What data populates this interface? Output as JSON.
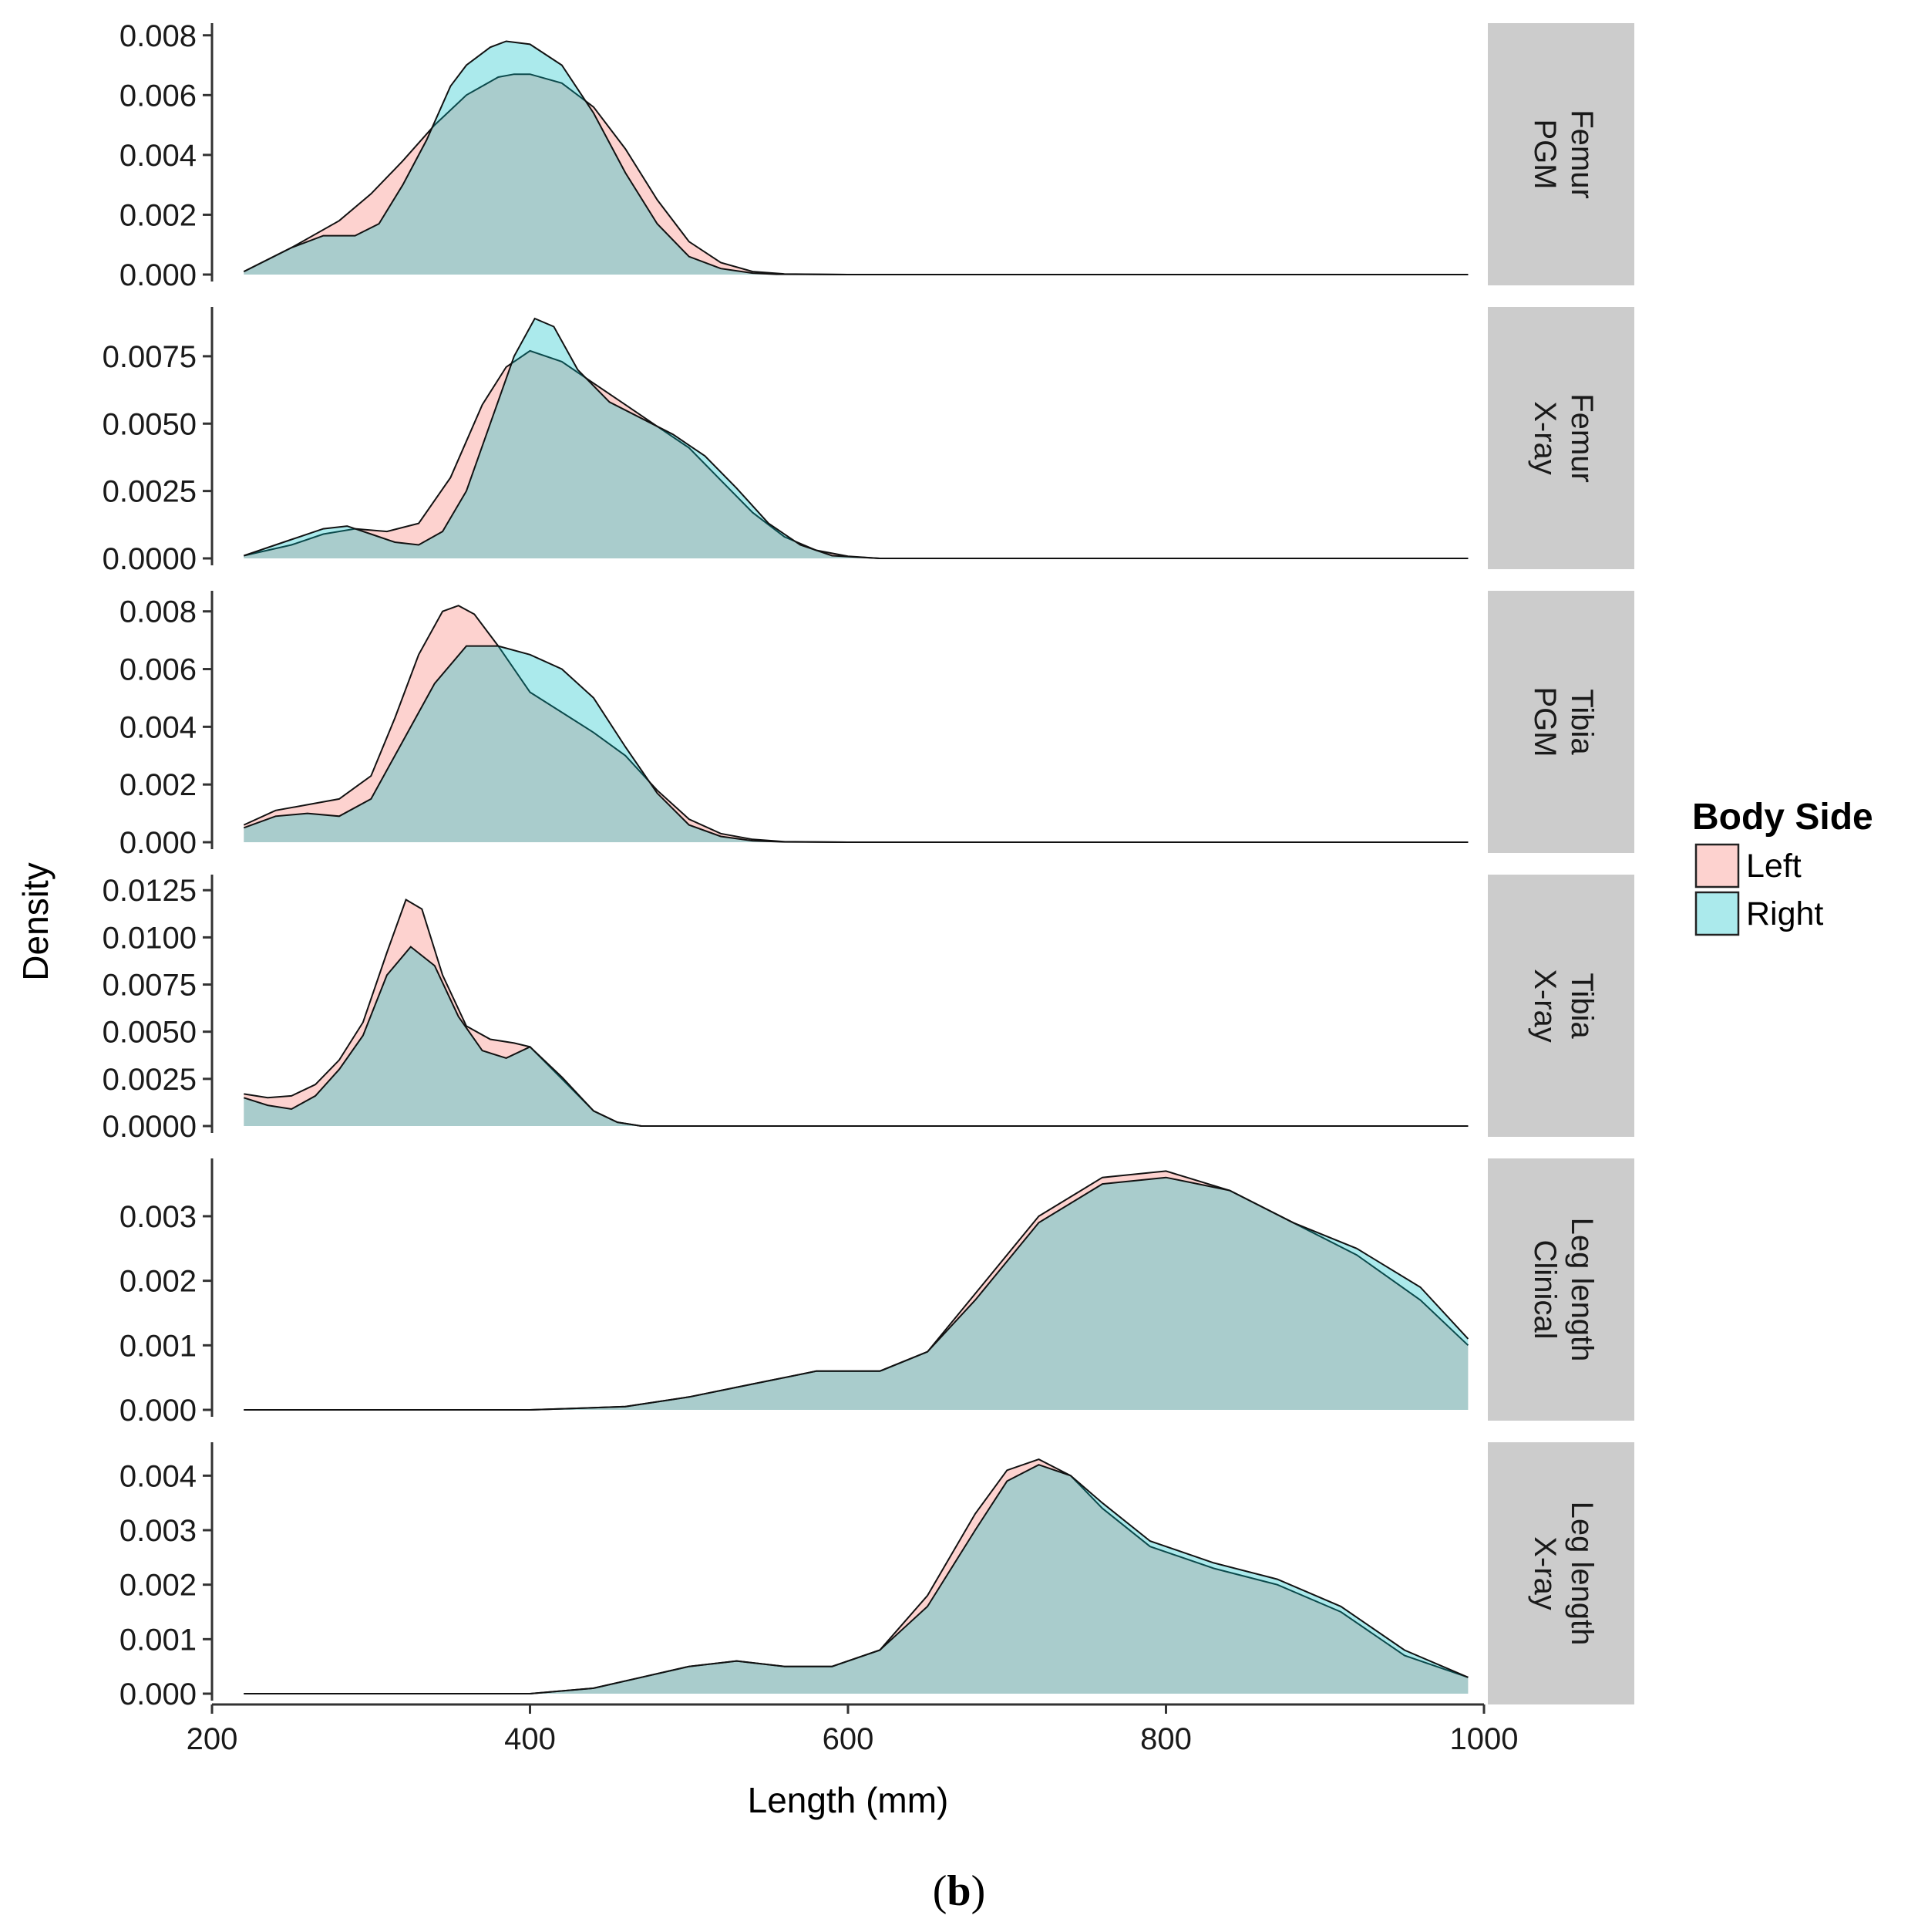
{
  "chart_data": {
    "type": "area",
    "subtype": "faceted density plot",
    "xlabel": "Length (mm)",
    "ylabel": "Density",
    "xlim": [
      200,
      1000
    ],
    "x_ticks": [
      200,
      400,
      600,
      800,
      1000
    ],
    "x_tick_labels": [
      "200",
      "400",
      "600",
      "800",
      "1000"
    ],
    "caption": "(b)",
    "legend": {
      "title": "Body Side",
      "position": "right",
      "items": [
        {
          "label": "Left",
          "color": "#f8766d"
        },
        {
          "label": "Right",
          "color": "#00bfc4"
        }
      ]
    },
    "colors": {
      "left_fill": "#f8766d",
      "right_fill": "#00bfc4",
      "strip_bg": "#cccccc"
    },
    "panels": [
      {
        "strip": [
          "Femur",
          "PGM"
        ],
        "ylim": [
          0,
          0.0082
        ],
        "y_ticks": [
          0,
          0.002,
          0.004,
          0.006,
          0.008
        ],
        "y_tick_labels": [
          "0.000",
          "0.002",
          "0.004",
          "0.006",
          "0.008"
        ],
        "series": [
          {
            "name": "Left",
            "x": [
              220,
              250,
              280,
              300,
              320,
              340,
              360,
              380,
              390,
              400,
              420,
              440,
              460,
              480,
              500,
              520,
              540,
              560,
              600,
              990
            ],
            "y": [
              0.0001,
              0.0009,
              0.0018,
              0.0027,
              0.0038,
              0.005,
              0.006,
              0.0066,
              0.0067,
              0.0067,
              0.0064,
              0.0056,
              0.0042,
              0.0025,
              0.0011,
              0.0004,
              0.0001,
              2e-05,
              0,
              0
            ]
          },
          {
            "name": "Right",
            "x": [
              220,
              250,
              270,
              290,
              305,
              320,
              335,
              350,
              360,
              375,
              385,
              400,
              420,
              440,
              460,
              480,
              500,
              520,
              540,
              555,
              600,
              990
            ],
            "y": [
              0.0001,
              0.0009,
              0.0013,
              0.0013,
              0.0017,
              0.003,
              0.0045,
              0.0063,
              0.007,
              0.0076,
              0.0078,
              0.0077,
              0.007,
              0.0054,
              0.0034,
              0.0017,
              0.0006,
              0.0002,
              5e-05,
              1e-05,
              0,
              0
            ]
          }
        ]
      },
      {
        "strip": [
          "Femur",
          "X-ray"
        ],
        "ylim": [
          0,
          0.0091
        ],
        "y_ticks": [
          0,
          0.0025,
          0.005,
          0.0075
        ],
        "y_tick_labels": [
          "0.0000",
          "0.0025",
          "0.0050",
          "0.0075"
        ],
        "series": [
          {
            "name": "Left",
            "x": [
              220,
              250,
              270,
              290,
              310,
              330,
              350,
              370,
              385,
              400,
              420,
              440,
              460,
              480,
              500,
              520,
              540,
              560,
              580,
              600,
              620,
              990
            ],
            "y": [
              0.0001,
              0.0005,
              0.0009,
              0.0011,
              0.001,
              0.0013,
              0.003,
              0.0057,
              0.0071,
              0.0077,
              0.0073,
              0.0065,
              0.0057,
              0.0049,
              0.0041,
              0.0029,
              0.0017,
              0.0008,
              0.0003,
              8e-05,
              0,
              0
            ]
          },
          {
            "name": "Right",
            "x": [
              220,
              250,
              270,
              285,
              300,
              315,
              330,
              345,
              360,
              375,
              390,
              403,
              415,
              430,
              450,
              470,
              490,
              510,
              530,
              550,
              570,
              590,
              620,
              990
            ],
            "y": [
              0.0001,
              0.0007,
              0.0011,
              0.0012,
              0.0009,
              0.0006,
              0.0005,
              0.001,
              0.0025,
              0.005,
              0.0075,
              0.0089,
              0.0086,
              0.007,
              0.0058,
              0.0052,
              0.0046,
              0.0038,
              0.0026,
              0.0013,
              0.0005,
              0.0001,
              0,
              0
            ]
          }
        ]
      },
      {
        "strip": [
          "Tibia",
          "PGM"
        ],
        "ylim": [
          0,
          0.0085
        ],
        "y_ticks": [
          0,
          0.002,
          0.004,
          0.006,
          0.008
        ],
        "y_tick_labels": [
          "0.000",
          "0.002",
          "0.004",
          "0.006",
          "0.008"
        ],
        "series": [
          {
            "name": "Left",
            "x": [
              220,
              240,
              260,
              280,
              300,
              315,
              330,
              345,
              355,
              365,
              380,
              400,
              420,
              440,
              460,
              480,
              500,
              520,
              540,
              560,
              600,
              990
            ],
            "y": [
              0.0006,
              0.0011,
              0.0013,
              0.0015,
              0.0023,
              0.0043,
              0.0065,
              0.008,
              0.0082,
              0.0079,
              0.0068,
              0.0052,
              0.0045,
              0.0038,
              0.003,
              0.0018,
              0.0008,
              0.0003,
              0.0001,
              2e-05,
              0,
              0
            ]
          },
          {
            "name": "Right",
            "x": [
              220,
              240,
              260,
              280,
              300,
              320,
              340,
              360,
              380,
              400,
              420,
              440,
              460,
              480,
              500,
              520,
              540,
              560,
              600,
              990
            ],
            "y": [
              0.0005,
              0.0009,
              0.001,
              0.0009,
              0.0015,
              0.0035,
              0.0055,
              0.0068,
              0.0068,
              0.0065,
              0.006,
              0.005,
              0.0033,
              0.0017,
              0.0006,
              0.0002,
              5e-05,
              1e-05,
              0,
              0
            ]
          }
        ]
      },
      {
        "strip": [
          "Tibia",
          "X-ray"
        ],
        "ylim": [
          0,
          0.013
        ],
        "y_ticks": [
          0,
          0.0025,
          0.005,
          0.0075,
          0.01,
          0.0125
        ],
        "y_tick_labels": [
          "0.0000",
          "0.0025",
          "0.0050",
          "0.0075",
          "0.0100",
          "0.0125"
        ],
        "series": [
          {
            "name": "Left",
            "x": [
              220,
              235,
              250,
              265,
              280,
              295,
              310,
              322,
              332,
              345,
              360,
              375,
              390,
              400,
              420,
              440,
              455,
              470,
              990
            ],
            "y": [
              0.0017,
              0.0015,
              0.0016,
              0.0022,
              0.0035,
              0.0055,
              0.0092,
              0.012,
              0.0115,
              0.008,
              0.0053,
              0.0046,
              0.0044,
              0.0042,
              0.0025,
              0.0008,
              0.0002,
              0,
              0
            ]
          },
          {
            "name": "Right",
            "x": [
              220,
              235,
              250,
              265,
              280,
              295,
              310,
              325,
              340,
              355,
              370,
              385,
              400,
              420,
              440,
              455,
              470,
              990
            ],
            "y": [
              0.0015,
              0.0011,
              0.0009,
              0.0016,
              0.003,
              0.0048,
              0.008,
              0.0095,
              0.0085,
              0.0058,
              0.004,
              0.0036,
              0.0042,
              0.0026,
              0.0008,
              0.0002,
              0,
              0
            ]
          }
        ]
      },
      {
        "strip": [
          "Leg length",
          "Clinical"
        ],
        "ylim": [
          0,
          0.0038
        ],
        "y_ticks": [
          0,
          0.001,
          0.002,
          0.003
        ],
        "y_tick_labels": [
          "0.000",
          "0.001",
          "0.002",
          "0.003"
        ],
        "series": [
          {
            "name": "Left",
            "x": [
              220,
              400,
              460,
              500,
              540,
              580,
              620,
              650,
              680,
              720,
              760,
              800,
              840,
              880,
              920,
              960,
              990
            ],
            "y": [
              0,
              0,
              5e-05,
              0.0002,
              0.0004,
              0.0006,
              0.0006,
              0.0009,
              0.0018,
              0.003,
              0.0036,
              0.0037,
              0.0034,
              0.0029,
              0.0024,
              0.0017,
              0.001
            ]
          },
          {
            "name": "Right",
            "x": [
              220,
              400,
              460,
              500,
              540,
              580,
              620,
              650,
              680,
              720,
              760,
              800,
              840,
              880,
              920,
              960,
              990
            ],
            "y": [
              0,
              0,
              5e-05,
              0.0002,
              0.0004,
              0.0006,
              0.0006,
              0.0009,
              0.0017,
              0.0029,
              0.0035,
              0.0036,
              0.0034,
              0.0029,
              0.0025,
              0.0019,
              0.0011
            ]
          }
        ]
      },
      {
        "strip": [
          "Leg length",
          "X-ray"
        ],
        "ylim": [
          0,
          0.0045
        ],
        "y_ticks": [
          0,
          0.001,
          0.002,
          0.003,
          0.004
        ],
        "y_tick_labels": [
          "0.000",
          "0.001",
          "0.002",
          "0.003",
          "0.004"
        ],
        "series": [
          {
            "name": "Left",
            "x": [
              220,
              400,
              440,
              470,
              500,
              530,
              560,
              590,
              620,
              650,
              680,
              700,
              720,
              740,
              760,
              790,
              830,
              870,
              910,
              950,
              990
            ],
            "y": [
              0,
              0,
              0.0001,
              0.0003,
              0.0005,
              0.0006,
              0.0005,
              0.0005,
              0.0008,
              0.0018,
              0.0033,
              0.0041,
              0.0043,
              0.004,
              0.0034,
              0.0027,
              0.0023,
              0.002,
              0.0015,
              0.0007,
              0.0003
            ]
          },
          {
            "name": "Right",
            "x": [
              220,
              400,
              440,
              470,
              500,
              530,
              560,
              590,
              620,
              650,
              680,
              700,
              720,
              740,
              760,
              790,
              830,
              870,
              910,
              950,
              990
            ],
            "y": [
              0,
              0,
              0.0001,
              0.0003,
              0.0005,
              0.0006,
              0.0005,
              0.0005,
              0.0008,
              0.0016,
              0.003,
              0.0039,
              0.0042,
              0.004,
              0.0035,
              0.0028,
              0.0024,
              0.0021,
              0.0016,
              0.0008,
              0.0003
            ]
          }
        ]
      }
    ]
  }
}
